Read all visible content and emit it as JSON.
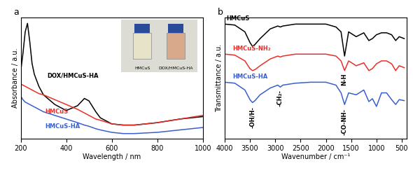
{
  "chart_data": [
    {
      "type": "line",
      "title": "a",
      "x_label": "Wavelength / nm",
      "y_label": "Absorbance / a.u.",
      "x": [
        200,
        210,
        220,
        230,
        240,
        250,
        260,
        280,
        300,
        350,
        400,
        450,
        480,
        500,
        530,
        550,
        600,
        650,
        700,
        800,
        900,
        1000
      ],
      "series": [
        {
          "name": "DOX/HMCuS-HA",
          "color": "#000000",
          "values": [
            0.55,
            0.7,
            0.88,
            0.95,
            0.8,
            0.62,
            0.53,
            0.43,
            0.36,
            0.28,
            0.23,
            0.27,
            0.33,
            0.31,
            0.22,
            0.17,
            0.12,
            0.11,
            0.11,
            0.13,
            0.16,
            0.18
          ]
        },
        {
          "name": "HMCuS",
          "color": "#e8302a",
          "values": [
            0.45,
            0.44,
            0.43,
            0.42,
            0.41,
            0.4,
            0.39,
            0.37,
            0.36,
            0.32,
            0.28,
            0.24,
            0.21,
            0.19,
            0.16,
            0.15,
            0.12,
            0.11,
            0.11,
            0.13,
            0.16,
            0.19
          ]
        },
        {
          "name": "HMCuS-HA",
          "color": "#3a5fcd",
          "values": [
            0.35,
            0.32,
            0.3,
            0.29,
            0.28,
            0.27,
            0.26,
            0.24,
            0.22,
            0.19,
            0.16,
            0.13,
            0.11,
            0.1,
            0.08,
            0.07,
            0.05,
            0.04,
            0.04,
            0.05,
            0.07,
            0.09
          ]
        }
      ],
      "inset_labels": [
        "HMCuS",
        "DOX/HMCuS-HA"
      ],
      "xlim": [
        200,
        1000
      ],
      "xticks": [
        200,
        400,
        600,
        800,
        1000
      ],
      "ylim": [
        0,
        1
      ],
      "tick_labels": "x"
    },
    {
      "type": "line",
      "title": "b",
      "x_label": "Wavenumber / cm⁻¹",
      "y_label": "Transmittance / a.u.",
      "x": [
        4000,
        3800,
        3600,
        3500,
        3450,
        3400,
        3300,
        3100,
        2950,
        2900,
        2850,
        2600,
        2300,
        2000,
        1800,
        1700,
        1630,
        1550,
        1400,
        1250,
        1150,
        1080,
        1000,
        900,
        800,
        700,
        620,
        550,
        450
      ],
      "series": [
        {
          "name": "HMCuS",
          "color": "#000000",
          "values": [
            0.93,
            0.92,
            0.85,
            0.74,
            0.7,
            0.72,
            0.78,
            0.88,
            0.91,
            0.9,
            0.91,
            0.93,
            0.93,
            0.93,
            0.9,
            0.85,
            0.6,
            0.85,
            0.8,
            0.84,
            0.76,
            0.78,
            0.82,
            0.84,
            0.84,
            0.82,
            0.76,
            0.8,
            0.78
          ]
        },
        {
          "name": "HMCuS-NH₂",
          "color": "#e8302a",
          "values": [
            0.62,
            0.61,
            0.55,
            0.47,
            0.45,
            0.46,
            0.5,
            0.57,
            0.6,
            0.59,
            0.6,
            0.62,
            0.62,
            0.62,
            0.6,
            0.55,
            0.45,
            0.55,
            0.5,
            0.53,
            0.45,
            0.47,
            0.52,
            0.55,
            0.55,
            0.52,
            0.45,
            0.5,
            0.48
          ]
        },
        {
          "name": "HMCuS-HA",
          "color": "#3a5fcd",
          "values": [
            0.33,
            0.32,
            0.25,
            0.15,
            0.12,
            0.14,
            0.2,
            0.27,
            0.3,
            0.28,
            0.3,
            0.32,
            0.33,
            0.33,
            0.3,
            0.22,
            0.1,
            0.22,
            0.2,
            0.25,
            0.13,
            0.16,
            0.08,
            0.22,
            0.22,
            0.15,
            0.1,
            0.15,
            0.14
          ]
        }
      ],
      "annotations": [
        {
          "text": "-OH/H-",
          "x": 3450,
          "y": 0.08
        },
        {
          "text": "-CH₂-",
          "x": 2900,
          "y": 0.25
        },
        {
          "text": "-CO-NH-",
          "x": 1630,
          "y": 0.06
        },
        {
          "text": "N-H",
          "x": 1630,
          "y": 0.42
        }
      ],
      "xlim": [
        4000,
        400
      ],
      "xticks": [
        4000,
        3500,
        3000,
        2500,
        2000,
        1500,
        1000,
        500
      ],
      "ylim": [
        -0.25,
        1.0
      ],
      "tick_labels": "x"
    }
  ]
}
